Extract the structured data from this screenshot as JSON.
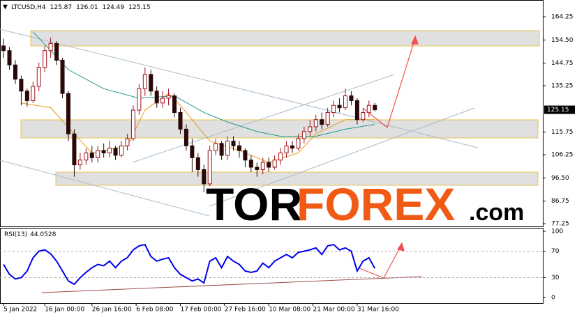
{
  "chart_data": {
    "type": "candlestick",
    "symbol": "LTCUSD,H4",
    "header_values": [
      125.87,
      126.01,
      124.49,
      125.15
    ],
    "up_color": "#a01018",
    "down_color": "#2a0808",
    "open": [
      152,
      150,
      144,
      138,
      133,
      129,
      135,
      143,
      150,
      153,
      146,
      132,
      115,
      102,
      104,
      107,
      105,
      108,
      107,
      109,
      106,
      110,
      113,
      125,
      134,
      140,
      133,
      128,
      130,
      131,
      124,
      117,
      110,
      105,
      100,
      94,
      108,
      111,
      106,
      112,
      110,
      108,
      104,
      101,
      100,
      103,
      101,
      104,
      107,
      110,
      109,
      113,
      116,
      118,
      121,
      119,
      124,
      127,
      126,
      131,
      129,
      121,
      124,
      127
    ],
    "high": [
      155,
      151.5,
      146,
      139.5,
      134,
      137,
      145,
      152,
      155.5,
      154,
      147,
      133,
      117,
      107,
      109,
      110,
      110,
      111,
      112,
      110,
      112,
      115,
      127,
      136,
      143,
      142,
      135,
      133,
      134,
      132,
      126,
      119,
      113,
      107,
      102,
      110,
      113,
      112,
      114,
      114,
      112,
      109,
      106,
      103,
      105,
      105,
      106,
      109,
      112,
      112,
      115,
      118,
      121,
      123,
      124,
      126,
      129,
      130,
      134,
      133,
      130,
      126,
      129,
      128
    ],
    "low": [
      147,
      142,
      136,
      127,
      126.5,
      128,
      133,
      141,
      147,
      144,
      130,
      112,
      97,
      100,
      102,
      103,
      103,
      105,
      105,
      104,
      105,
      108,
      112,
      123,
      131,
      131,
      126,
      126,
      127,
      122,
      115,
      108,
      99,
      97,
      90.5,
      93,
      106,
      104,
      104,
      108,
      105,
      101,
      99,
      97,
      98,
      99,
      100,
      102,
      105,
      107,
      108,
      111,
      114,
      116,
      117,
      118,
      122,
      124,
      125,
      127,
      119,
      120,
      122,
      124.49
    ],
    "close": [
      150,
      144,
      138,
      133,
      129,
      135,
      143,
      150,
      153,
      146,
      132,
      115,
      102,
      104,
      107,
      105,
      108,
      107,
      109,
      106,
      110,
      113,
      125,
      134,
      140,
      133,
      128,
      130,
      131,
      124,
      117,
      110,
      105,
      100,
      94,
      108,
      111,
      106,
      112,
      110,
      108,
      104,
      101,
      100,
      103,
      101,
      104,
      107,
      110,
      109,
      113,
      116,
      118,
      121,
      119,
      124,
      127,
      126,
      131,
      129,
      121,
      124,
      127,
      125.15
    ],
    "moving_averages": [
      {
        "color": "#e39a1c",
        "x": [
          3,
          8,
          12,
          15,
          21,
          24,
          28,
          30,
          35,
          40,
          45,
          50,
          53,
          58,
          63
        ],
        "values": [
          128,
          126,
          115,
          107,
          110,
          125,
          132,
          127,
          112,
          108,
          103,
          107,
          115,
          121,
          121
        ]
      },
      {
        "color": "#1f9a8a",
        "x": [
          5,
          11,
          17,
          23,
          29,
          34,
          38,
          43,
          47,
          53,
          58,
          63
        ],
        "values": [
          158,
          142,
          134,
          130,
          131,
          124,
          120,
          116,
          114,
          114,
          117,
          119
        ]
      }
    ],
    "xlim": [
      -0.6,
      91.5
    ],
    "ylim": [
      76.1,
      171.3
    ],
    "yticks": [
      164.25,
      {
        "value": 154.5,
        "label": "154.50"
      },
      144.75,
      135.25,
      115.75,
      106.25,
      {
        "value": 96.5,
        "label": "96.50"
      },
      86.75,
      77.25
    ],
    "xticks": [
      {
        "value": 0,
        "label": "5 Jan 2022"
      },
      {
        "value": 7,
        "label": "16 Jan 00:00"
      },
      {
        "value": 15,
        "label": "26 Jan 16:00"
      },
      {
        "value": 22.5,
        "label": "6 Feb 08:00"
      },
      {
        "value": 30,
        "label": "17 Feb 00:00"
      },
      {
        "value": 37.5,
        "label": "27 Feb 16:00"
      },
      {
        "value": 45,
        "label": "10 Mar 08:00"
      },
      {
        "value": 52.5,
        "label": "21 Mar 00:00"
      },
      {
        "value": 60,
        "label": "31 Mar 16:00"
      }
    ],
    "rsi": {
      "title": "RSI(13)",
      "color": "#0000ee",
      "values": [
        50,
        35,
        28,
        30,
        40,
        60,
        70,
        72,
        66,
        55,
        40,
        25,
        20,
        30,
        38,
        45,
        50,
        48,
        55,
        45,
        55,
        60,
        72,
        78,
        80,
        62,
        55,
        58,
        60,
        45,
        35,
        30,
        25,
        28,
        22,
        55,
        60,
        45,
        62,
        55,
        50,
        40,
        38,
        40,
        52,
        45,
        55,
        60,
        65,
        60,
        68,
        70,
        72,
        75,
        65,
        78,
        80,
        72,
        75,
        70,
        40,
        55,
        60,
        44.0528
      ],
      "ylim": [
        -8.4,
        105.3
      ],
      "yticks": [
        100,
        70,
        30,
        0
      ],
      "levels": [
        70,
        30
      ]
    }
  },
  "logo": {
    "tor": "TOR",
    "forex": "FOREX",
    "com": ".com"
  }
}
